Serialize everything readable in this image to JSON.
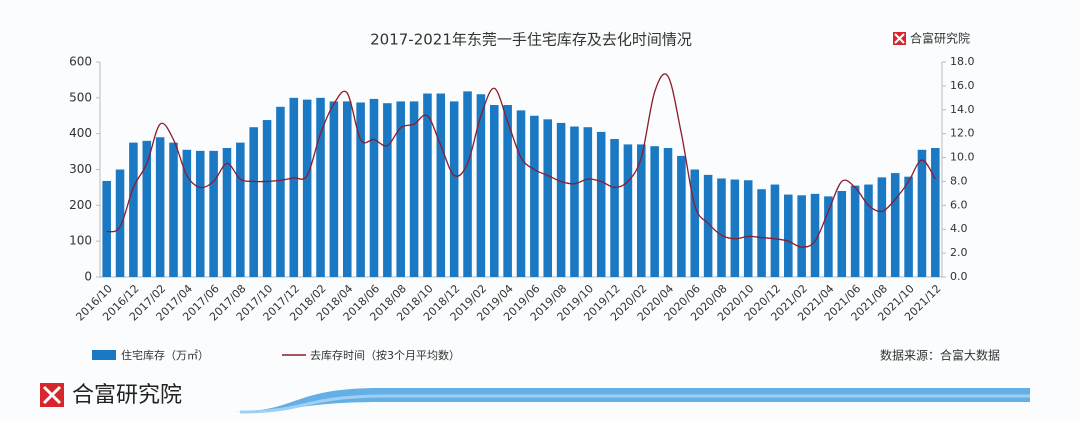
{
  "chart_data": {
    "type": "bar-line",
    "title": "2017-2021年东莞一手住宅库存及去化时间情况",
    "brand": "合富研究院",
    "source": "数据来源：合富大数据",
    "categories": [
      "2016/10",
      null,
      "2016/12",
      null,
      "2017/02",
      null,
      "2017/04",
      null,
      "2017/06",
      null,
      "2017/08",
      null,
      "2017/10",
      null,
      "2017/12",
      null,
      "2018/02",
      null,
      "2018/04",
      null,
      "2018/06",
      null,
      "2018/08",
      null,
      "2018/10",
      null,
      "2018/12",
      null,
      "2019/02",
      null,
      "2019/04",
      null,
      "2019/06",
      null,
      "2019/08",
      null,
      "2019/10",
      null,
      "2019/12",
      null,
      "2020/02",
      null,
      "2020/04",
      null,
      "2020/06",
      null,
      "2020/08",
      null,
      "2020/10",
      null,
      "2020/12",
      null,
      "2021/02",
      null,
      "2021/04",
      null,
      "2021/06",
      null,
      "2021/08",
      null,
      "2021/10",
      null,
      "2021/12"
    ],
    "series": [
      {
        "name": "住宅库存（万㎡）",
        "type": "bar",
        "color": "#1b78c2",
        "values": [
          268,
          300,
          375,
          380,
          390,
          375,
          355,
          352,
          352,
          360,
          375,
          418,
          438,
          475,
          500,
          495,
          500,
          490,
          490,
          487,
          497,
          485,
          490,
          490,
          512,
          512,
          490,
          518,
          510,
          480,
          480,
          465,
          450,
          440,
          430,
          420,
          418,
          405,
          385,
          370,
          370,
          365,
          360,
          338,
          300,
          285,
          275,
          272,
          270,
          245,
          258,
          230,
          228,
          232,
          225,
          240,
          255,
          258,
          278,
          290,
          280,
          355,
          360
        ]
      },
      {
        "name": "去库存时间（按3个月平均数）",
        "type": "line",
        "color": "#8b1c2c",
        "axis": "y2",
        "values": [
          3.8,
          4.2,
          7.5,
          9.5,
          12.8,
          11.5,
          8.5,
          7.5,
          8.0,
          9.5,
          8.2,
          8.0,
          8.0,
          8.1,
          8.3,
          8.5,
          12.0,
          14.5,
          15.4,
          11.5,
          11.5,
          11.0,
          12.5,
          12.8,
          13.5,
          11.0,
          8.5,
          9.5,
          13.5,
          15.8,
          13.0,
          10.0,
          9.0,
          8.5,
          8.0,
          7.8,
          8.2,
          8.0,
          7.5,
          8.0,
          10.0,
          15.5,
          16.8,
          12.0,
          6.0,
          4.5,
          3.5,
          3.2,
          3.4,
          3.3,
          3.2,
          3.0,
          2.5,
          3.0,
          5.5,
          8.0,
          7.5,
          6.0,
          5.5,
          6.5,
          8.0,
          9.8,
          8.2
        ]
      }
    ],
    "ylim": [
      0,
      600
    ],
    "yticks": [
      0,
      100,
      200,
      300,
      400,
      500,
      600
    ],
    "y2lim": [
      0,
      18
    ],
    "y2ticks": [
      {
        "value": 0,
        "label": "0.0"
      },
      {
        "value": 2,
        "label": "2.0"
      },
      {
        "value": 4,
        "label": "4.0"
      },
      {
        "value": 6,
        "label": "6.0"
      },
      {
        "value": 8,
        "label": "8.0"
      },
      {
        "value": 10,
        "label": "10.0"
      },
      {
        "value": 12,
        "label": "12.0"
      },
      {
        "value": 14,
        "label": "14.0"
      },
      {
        "value": 16,
        "label": "16.0"
      },
      {
        "value": 18,
        "label": "18.0"
      }
    ],
    "grid": false
  }
}
